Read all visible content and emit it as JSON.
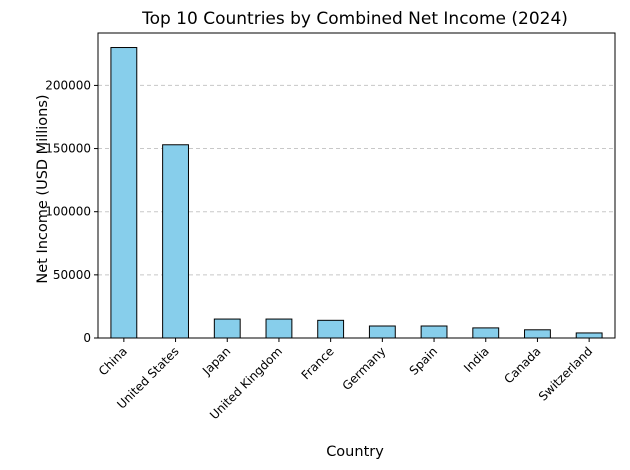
{
  "chart_data": {
    "type": "bar",
    "title": "Top 10 Countries by Combined Net Income (2024)",
    "xlabel": "Country",
    "ylabel": "Net Income (USD Millions)",
    "categories": [
      "China",
      "United States",
      "Japan",
      "United Kingdom",
      "France",
      "Germany",
      "Spain",
      "India",
      "Canada",
      "Switzerland"
    ],
    "values": [
      230000,
      153000,
      15000,
      15000,
      14000,
      9500,
      9500,
      8000,
      6500,
      4000
    ],
    "ylim": [
      0,
      241500
    ],
    "yticks": [
      0,
      50000,
      100000,
      150000,
      200000
    ],
    "ytick_labels": [
      "0",
      "50000",
      "100000",
      "150000",
      "200000"
    ],
    "grid": "y-dashed",
    "legend": "none",
    "colors": {
      "bar": "#87CEEB",
      "edge": "#000000",
      "grid": "#c8c8c8"
    }
  }
}
